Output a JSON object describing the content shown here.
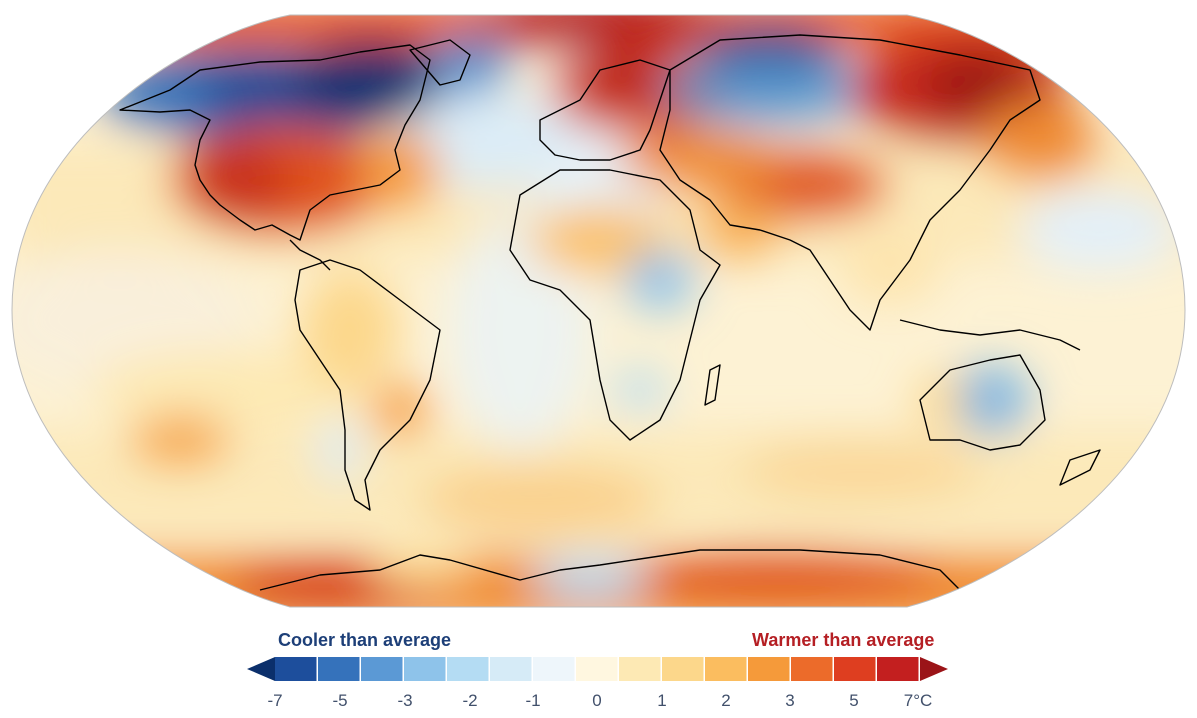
{
  "legend": {
    "cooler_label": "Cooler than average",
    "warmer_label": "Warmer than average",
    "ticks": [
      "-7",
      "-5",
      "-3",
      "-2",
      "-1",
      "0",
      "1",
      "2",
      "3",
      "5",
      "7°C"
    ],
    "colors": [
      "#0b2f6b",
      "#1d4e9c",
      "#3572bb",
      "#5b99d5",
      "#8ec3ea",
      "#b4dcf3",
      "#d6ebf7",
      "#eef6fb",
      "#fff7e0",
      "#fde9b4",
      "#fcd78b",
      "#fbbd5f",
      "#f59a3a",
      "#ec6b2a",
      "#de3e20",
      "#c31f1f",
      "#9b1418"
    ],
    "cool_color": "#1d3f78",
    "warm_color": "#b51f24"
  },
  "map": {
    "projection": "robinson",
    "ocean_base_color": "#fdf2d4",
    "coastline_color": "#000000"
  }
}
